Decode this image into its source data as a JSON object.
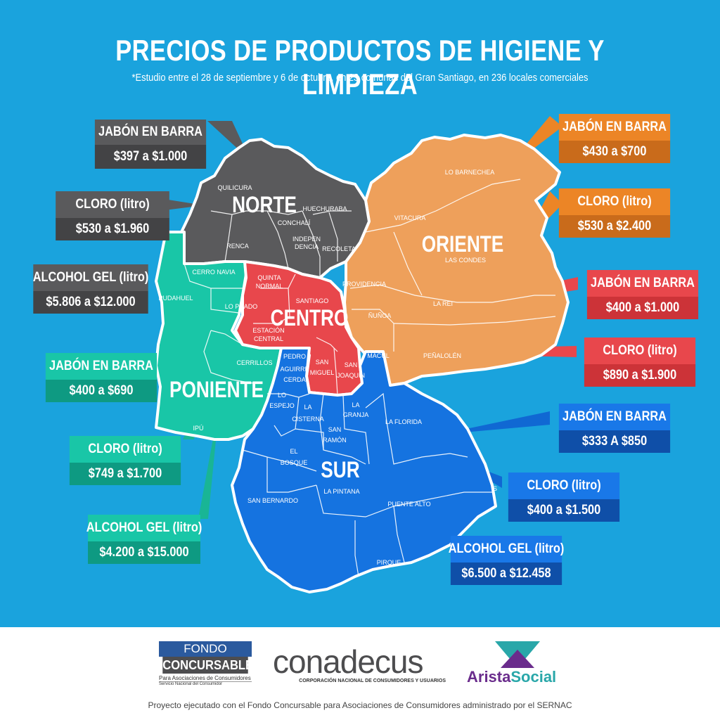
{
  "title": "PRECIOS DE PRODUCTOS DE HIGIENE Y LIMPIEZA",
  "subtitle": "*Estudio entre el 28 de septiembre y 6 de octubre, en 23 comunas del Gran Santiago, en 236 locales comerciales",
  "colors": {
    "background": "#1aa3dd",
    "norte": "#5a5a5c",
    "oriente": "#eea05b",
    "centro": "#e8474c",
    "poniente": "#19c6a7",
    "sur": "#1573e0"
  },
  "zones": {
    "norte": "NORTE",
    "oriente": "ORIENTE",
    "centro": "CENTRO",
    "poniente": "PONIENTE",
    "sur": "SUR"
  },
  "comunas": {
    "quilicura": "QUILICURA",
    "huechuraba": "HUECHURABA",
    "conchali": "CONCHALÍ",
    "renca": "RENCA",
    "independencia_1": "INDEPEN",
    "independencia_2": "DENCIA",
    "recoleta": "RECOLETA",
    "lo_barnechea": "LO BARNECHEA",
    "vitacura": "VITACURA",
    "las_condes": "LAS CONDES",
    "providencia": "PROVIDENCIA",
    "nunoa": "ÑUÑOA",
    "la_reina": "LA REI",
    "penalolen": "PEÑALOLÉN",
    "cerro_navia": "CERRO NAVIA",
    "quinta_normal_1": "QUINTA",
    "quinta_normal_2": "NORMAL",
    "pudahuel": "PUDAHUEL",
    "lo_prado": "LO PRADO",
    "santiago": "SANTIAGO",
    "estacion_central_1": "ESTACIÓN",
    "estacion_central_2": "CENTRAL",
    "cerrillos": "CERRILLOS",
    "pedro_aguirre_cerda_1": "PEDRO",
    "pedro_aguirre_cerda_2": "AGUIRRE",
    "pedro_aguirre_cerda_3": "CERDA",
    "san_miguel_1": "SAN",
    "san_miguel_2": "MIGUEL",
    "san_joaquin_1": "SAN",
    "san_joaquin_2": "JOAQUÍN",
    "macul": "MACUL",
    "maipu": "IPÚ",
    "lo_espejo_1": "LO",
    "lo_espejo_2": "ESPEJO",
    "la_cisterna_1": "LA",
    "la_cisterna_2": "CISTERNA",
    "la_granja_1": "LA",
    "la_granja_2": "GRANJA",
    "san_ramon_1": "SAN",
    "san_ramon_2": "RAMÓN",
    "el_bosque_1": "EL",
    "el_bosque_2": "BOSQUE",
    "la_florida": "LA FLORIDA",
    "la_pintana": "LA PINTANA",
    "san_bernardo": "SAN BERNARDO",
    "puente_alto": "PUENTE ALTO",
    "pirque": "PIRQUE",
    "san_jose": "S"
  },
  "callouts": [
    {
      "zone": "norte",
      "label": "JABÓN EN BARRA",
      "range": "$397 a $1.000"
    },
    {
      "zone": "norte",
      "label": "CLORO (litro)",
      "range": "$530 a $1.960"
    },
    {
      "zone": "norte",
      "label": "ALCOHOL GEL (litro)",
      "range": "$5.806 a $12.000"
    },
    {
      "zone": "oriente",
      "label": "JABÓN EN BARRA",
      "range": "$430 a $700"
    },
    {
      "zone": "oriente",
      "label": "CLORO (litro)",
      "range": "$530 a $2.400"
    },
    {
      "zone": "centro",
      "label": "JABÓN EN BARRA",
      "range": "$400 a $1.000"
    },
    {
      "zone": "centro",
      "label": "CLORO (litro)",
      "range": "$890 a $1.900"
    },
    {
      "zone": "poniente",
      "label": "JABÓN EN BARRA",
      "range": "$400 a $690"
    },
    {
      "zone": "poniente",
      "label": "CLORO (litro)",
      "range": "$749 a $1.700"
    },
    {
      "zone": "poniente",
      "label": "ALCOHOL GEL (litro)",
      "range": "$4.200 a $15.000"
    },
    {
      "zone": "sur",
      "label": "JABÓN EN BARRA",
      "range": "$333 A $850"
    },
    {
      "zone": "sur",
      "label": "CLORO (litro)",
      "range": "$400 a $1.500"
    },
    {
      "zone": "sur",
      "label": "ALCOHOL GEL (litro)",
      "range": "$6.500 a $12.458"
    }
  ],
  "footer": {
    "fondo_line1": "FONDO",
    "fondo_line2": "CONCURSABLE",
    "fondo_line3": "Para Asociaciones de Consumidores",
    "fondo_line4": "Servicio Nacional del Consumidor",
    "conadecus": "conadecus",
    "conadecus_sub": "CORPORACIÓN NACIONAL DE CONSUMIDORES Y USUARIOS",
    "arista_1": "Arista",
    "arista_2": "Social",
    "note": "Proyecto ejecutado con el Fondo Concursable para Asociaciones de Consumidores administrado por el SERNAC"
  }
}
